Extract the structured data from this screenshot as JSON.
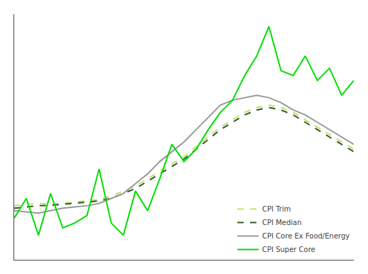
{
  "chart_data": {
    "type": "line",
    "x": [
      0,
      1,
      2,
      3,
      4,
      5,
      6,
      7,
      8,
      9,
      10,
      11,
      12,
      13,
      14,
      15,
      16,
      17,
      18,
      19,
      20,
      21,
      22,
      23,
      24,
      25,
      26,
      27,
      28
    ],
    "xlim": [
      0,
      28
    ],
    "ylim": [
      -0.5,
      9.5
    ],
    "tick_labels": false,
    "grid": false,
    "legend": "lower right",
    "series": [
      {
        "name": "CPI Trim",
        "color": "#c8e060",
        "line_style": "dashed",
        "values": [
          1.7,
          1.75,
          1.8,
          1.75,
          1.8,
          1.85,
          1.9,
          1.95,
          2.1,
          2.3,
          2.5,
          2.8,
          3.1,
          3.4,
          3.7,
          4.1,
          4.5,
          4.9,
          5.2,
          5.5,
          5.7,
          5.8,
          5.7,
          5.5,
          5.2,
          4.9,
          4.6,
          4.3,
          4.0
        ]
      },
      {
        "name": "CPI Median",
        "color": "#2d5a2d",
        "line_style": "dashed",
        "values": [
          1.6,
          1.65,
          1.7,
          1.72,
          1.75,
          1.8,
          1.85,
          1.9,
          2.0,
          2.2,
          2.4,
          2.7,
          3.0,
          3.3,
          3.6,
          4.0,
          4.4,
          4.8,
          5.1,
          5.4,
          5.6,
          5.7,
          5.6,
          5.4,
          5.1,
          4.8,
          4.5,
          4.2,
          3.9
        ]
      },
      {
        "name": "CPI Core Ex Food/Energy",
        "color": "#999999",
        "line_style": "solid",
        "values": [
          1.5,
          1.45,
          1.4,
          1.5,
          1.6,
          1.65,
          1.7,
          1.8,
          2.0,
          2.2,
          2.6,
          3.0,
          3.5,
          3.9,
          4.3,
          4.8,
          5.3,
          5.8,
          6.0,
          6.1,
          6.2,
          6.1,
          5.9,
          5.6,
          5.4,
          5.1,
          4.8,
          4.5,
          4.2
        ]
      },
      {
        "name": "CPI Super Core",
        "color": "#00dd00",
        "line_style": "solid",
        "values": [
          1.2,
          2.0,
          0.5,
          2.2,
          0.8,
          1.0,
          1.3,
          3.2,
          1.0,
          0.5,
          2.3,
          1.5,
          2.8,
          4.2,
          3.5,
          4.0,
          4.8,
          5.5,
          6.0,
          7.0,
          7.8,
          9.0,
          7.2,
          7.0,
          7.8,
          6.8,
          7.3,
          6.2,
          6.8
        ]
      }
    ]
  }
}
